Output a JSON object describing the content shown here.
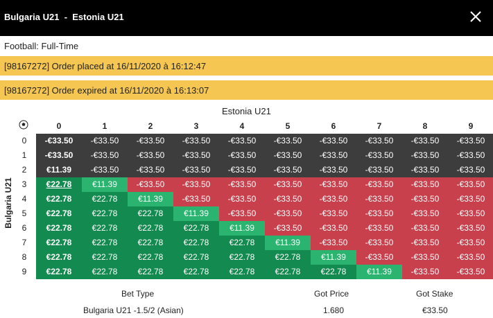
{
  "header": {
    "title": "Bulgaria U21  -  Estonia U21",
    "close_icon": "close-icon"
  },
  "subtitle": "Football: Full-Time",
  "notices": [
    "[98167272]  Order placed at 16/11/2020 à 16:12:47",
    "[98167272]  Order expired at 16/11/2020 à 16:13:07"
  ],
  "grid": {
    "column_team": "Estonia U21",
    "row_team": "Bulgaria U21",
    "corner_icon": "soccer-ball-icon",
    "columns": [
      "0",
      "1",
      "2",
      "3",
      "4",
      "5",
      "6",
      "7",
      "8",
      "9"
    ],
    "rows": [
      "0",
      "1",
      "2",
      "3",
      "4",
      "5",
      "6",
      "7",
      "8",
      "9"
    ],
    "values": {
      "loss": "-€33.50",
      "win": "€22.78",
      "push": "€11.39"
    },
    "colors": {
      "dark": "#3d3d3d",
      "red": "#c9404d",
      "dark_green": "#138a4f",
      "light_green": "#2bb470"
    }
  },
  "bet": {
    "headers": {
      "type": "Bet Type",
      "price": "Got Price",
      "stake": "Got Stake"
    },
    "row": {
      "type": "Bulgaria U21 -1.5/2 (Asian)",
      "price": "1.680",
      "stake": "€33.50"
    }
  }
}
